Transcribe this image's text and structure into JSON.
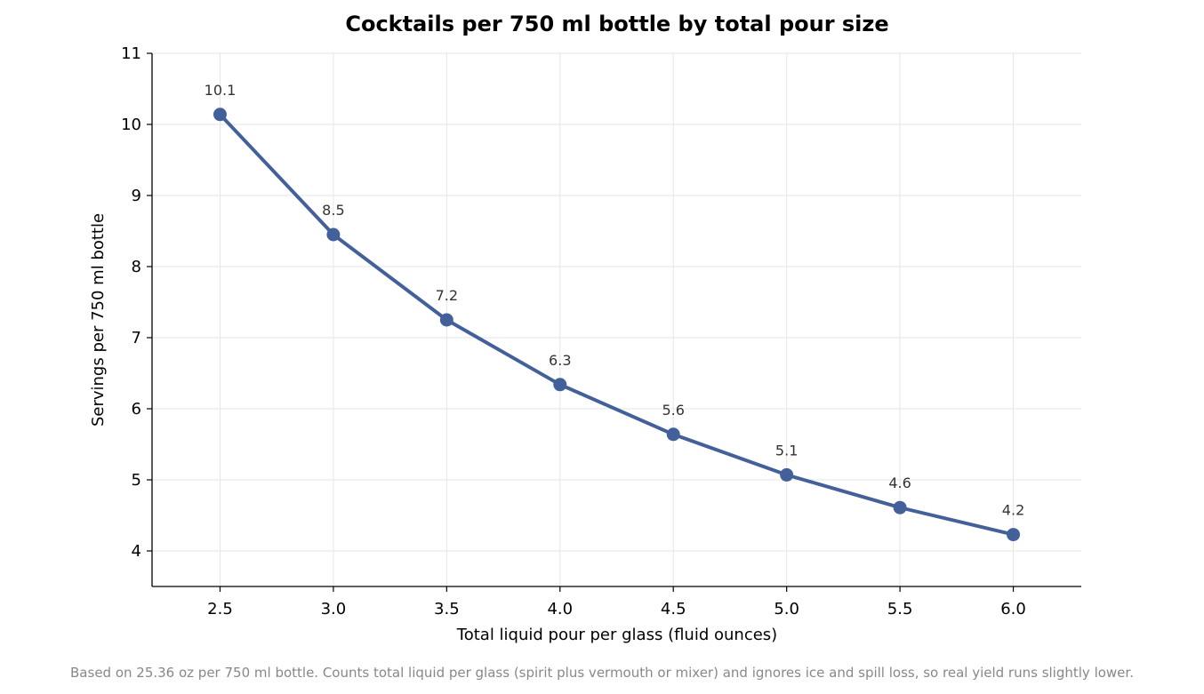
{
  "chart_data": {
    "type": "line",
    "title": "Cocktails per 750 ml bottle by total pour size",
    "xlabel": "Total liquid pour per glass (fluid ounces)",
    "ylabel": "Servings per 750 ml bottle",
    "footnote": "Based on 25.36 oz per 750 ml bottle. Counts total liquid per glass (spirit plus vermouth or mixer) and ignores ice and spill loss, so real yield runs slightly lower.",
    "x": [
      2.5,
      3.0,
      3.5,
      4.0,
      4.5,
      5.0,
      5.5,
      6.0
    ],
    "x_tick_labels": [
      "2.5",
      "3.0",
      "3.5",
      "4.0",
      "4.5",
      "5.0",
      "5.5",
      "6.0"
    ],
    "series": [
      {
        "values": [
          10.14,
          8.45,
          7.25,
          6.34,
          5.64,
          5.07,
          4.61,
          4.23
        ],
        "data_labels": [
          "10.1",
          "8.5",
          "7.2",
          "6.3",
          "5.6",
          "5.1",
          "4.6",
          "4.2"
        ],
        "color": "#44609a"
      }
    ],
    "xlim": [
      2.2,
      6.3
    ],
    "ylim": [
      3.5,
      11
    ],
    "y_ticks": [
      4,
      5,
      6,
      7,
      8,
      9,
      10,
      11
    ],
    "y_tick_labels": [
      "4",
      "5",
      "6",
      "7",
      "8",
      "9",
      "10",
      "11"
    ],
    "grid": true
  }
}
